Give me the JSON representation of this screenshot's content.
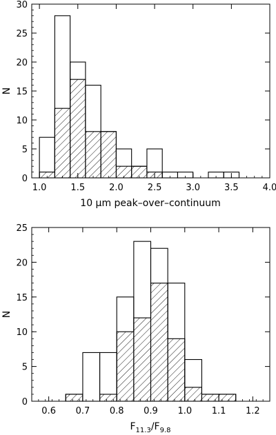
{
  "chart_data": [
    {
      "type": "bar",
      "style": "step-histogram",
      "xlabel": "10 μm peak–over–continuum",
      "ylabel": "N",
      "xlim": [
        0.9,
        4.0
      ],
      "ylim": [
        0,
        30
      ],
      "xticks": [
        "1.0",
        "1.5",
        "2.0",
        "2.5",
        "3.0",
        "3.5",
        "4.0"
      ],
      "xtick_values": [
        1.0,
        1.5,
        2.0,
        2.5,
        3.0,
        3.5,
        4.0
      ],
      "yticks": [
        "0",
        "5",
        "10",
        "15",
        "20",
        "25",
        "30"
      ],
      "ytick_values": [
        0,
        5,
        10,
        15,
        20,
        25,
        30
      ],
      "bin_edges": [
        1.0,
        1.2,
        1.4,
        1.6,
        1.8,
        2.0,
        2.2,
        2.4,
        2.6,
        2.8,
        3.0,
        3.2,
        3.4,
        3.6,
        3.8,
        4.0
      ],
      "series": [
        {
          "fill": "none",
          "values": [
            7,
            28,
            20,
            16,
            8,
            5,
            2,
            5,
            1,
            1,
            0,
            1,
            1,
            0,
            0
          ]
        },
        {
          "fill": "hatched",
          "values": [
            1,
            12,
            17,
            8,
            8,
            2,
            2,
            1,
            0,
            0,
            0,
            0,
            0,
            0,
            0
          ]
        }
      ]
    },
    {
      "type": "bar",
      "style": "step-histogram",
      "xlabel_main": "F",
      "xlabel_sub1": "11.3",
      "xlabel_sep": "/F",
      "xlabel_sub2": "9.8",
      "ylabel": "N",
      "xlim": [
        0.55,
        1.25
      ],
      "ylim": [
        0,
        25
      ],
      "xticks": [
        "0.6",
        "0.7",
        "0.8",
        "0.9",
        "1.0",
        "1.1",
        "1.2"
      ],
      "xtick_values": [
        0.6,
        0.7,
        0.8,
        0.9,
        1.0,
        1.1,
        1.2
      ],
      "yticks": [
        "0",
        "5",
        "10",
        "15",
        "20",
        "25"
      ],
      "ytick_values": [
        0,
        5,
        10,
        15,
        20,
        25
      ],
      "bin_edges": [
        0.6,
        0.65,
        0.7,
        0.75,
        0.8,
        0.85,
        0.9,
        0.95,
        1.0,
        1.05,
        1.1,
        1.15,
        1.2
      ],
      "series": [
        {
          "fill": "none",
          "values": [
            0,
            1,
            7,
            7,
            15,
            23,
            22,
            17,
            6,
            1,
            1,
            0
          ]
        },
        {
          "fill": "hatched",
          "values": [
            0,
            1,
            0,
            1,
            10,
            12,
            17,
            9,
            2,
            1,
            1,
            0
          ]
        }
      ]
    }
  ]
}
